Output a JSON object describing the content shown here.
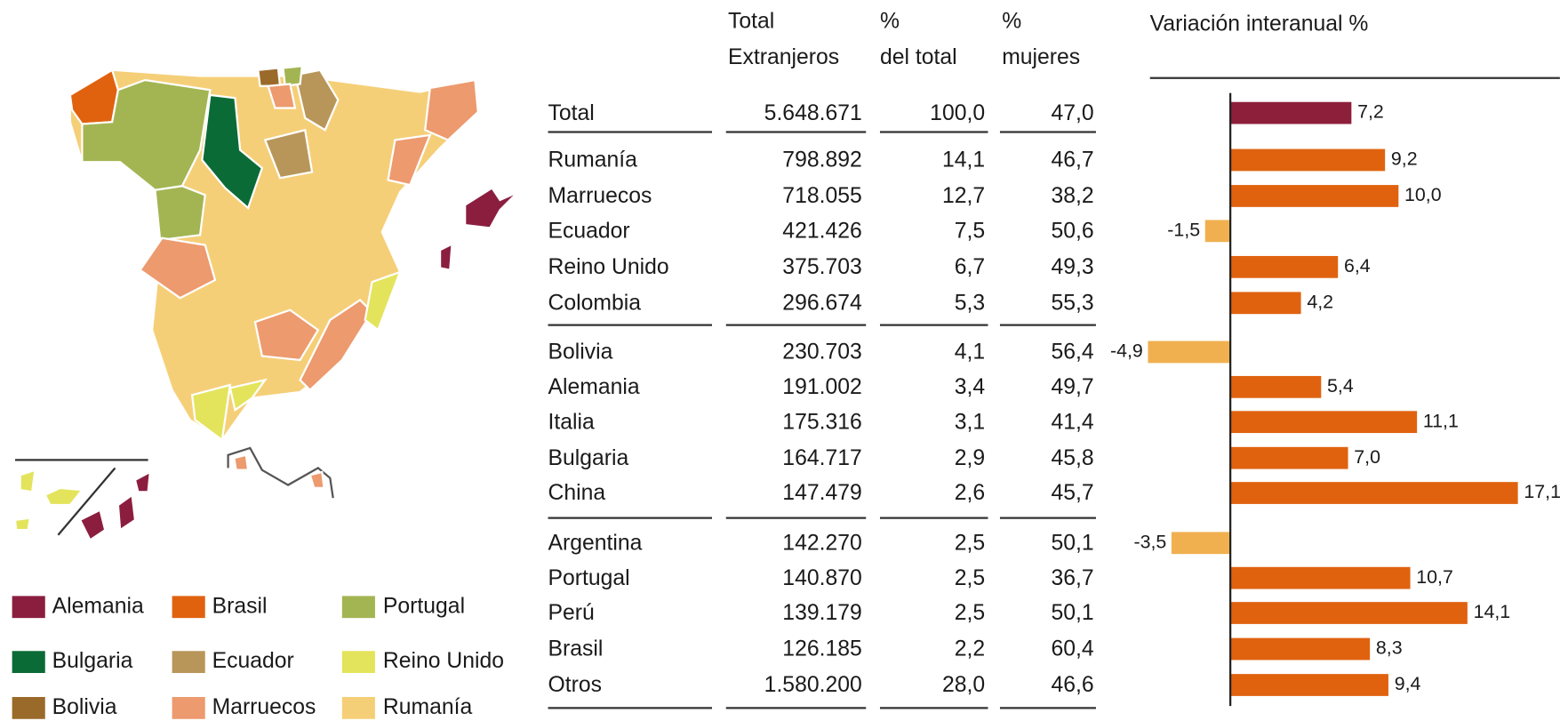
{
  "legend": [
    {
      "name": "Alemania",
      "color": "#8b1e3f"
    },
    {
      "name": "Brasil",
      "color": "#e0620f"
    },
    {
      "name": "Portugal",
      "color": "#a3b552"
    },
    {
      "name": "Bulgaria",
      "color": "#0b6b36"
    },
    {
      "name": "Ecuador",
      "color": "#b8965a"
    },
    {
      "name": "Reino Unido",
      "color": "#e3e45c"
    },
    {
      "name": "Bolivia",
      "color": "#9a6a2a"
    },
    {
      "name": "Marruecos",
      "color": "#ec9a6e"
    },
    {
      "name": "Rumanía",
      "color": "#f5cf78"
    }
  ],
  "table": {
    "headers": [
      [
        "Total",
        "Extranjeros"
      ],
      [
        "%",
        "del total"
      ],
      [
        "%",
        "mujeres"
      ]
    ],
    "rows": [
      [
        "Total",
        "5.648.671",
        "100,0",
        "47,0"
      ],
      [
        "Rumanía",
        "798.892",
        "14,1",
        "46,7"
      ],
      [
        "Marruecos",
        "718.055",
        "12,7",
        "38,2"
      ],
      [
        "Ecuador",
        "421.426",
        "7,5",
        "50,6"
      ],
      [
        "Reino Unido",
        "375.703",
        "6,7",
        "49,3"
      ],
      [
        "Colombia",
        "296.674",
        "5,3",
        "55,3"
      ],
      [
        "Bolivia",
        "230.703",
        "4,1",
        "56,4"
      ],
      [
        "Alemania",
        "191.002",
        "3,4",
        "49,7"
      ],
      [
        "Italia",
        "175.316",
        "3,1",
        "41,4"
      ],
      [
        "Bulgaria",
        "164.717",
        "2,9",
        "45,8"
      ],
      [
        "China",
        "147.479",
        "2,6",
        "45,7"
      ],
      [
        "Argentina",
        "142.270",
        "2,5",
        "50,1"
      ],
      [
        "Portugal",
        "140.870",
        "2,5",
        "36,7"
      ],
      [
        "Perú",
        "139.179",
        "2,5",
        "50,1"
      ],
      [
        "Brasil",
        "126.185",
        "2,2",
        "60,4"
      ],
      [
        "Otros",
        "1.580.200",
        "28,0",
        "46,6"
      ]
    ]
  },
  "chart_data": {
    "type": "bar",
    "title": "Variación interanual %",
    "values": [
      7.2,
      9.2,
      10.0,
      -1.5,
      6.4,
      4.2,
      -4.9,
      5.4,
      11.1,
      7.0,
      17.1,
      -3.5,
      10.7,
      14.1,
      8.3,
      9.4
    ],
    "value_labels": [
      "7,2",
      "9,2",
      "10,0",
      "-1,5",
      "6,4",
      "4,2",
      "-4,9",
      "5,4",
      "11,1",
      "7,0",
      "17,1",
      "-3,5",
      "10,7",
      "14,1",
      "8,3",
      "9,4"
    ],
    "colors": [
      "#8e1f3b",
      "#e0620f",
      "#e0620f",
      "#f0b050",
      "#e0620f",
      "#e0620f",
      "#f0b050",
      "#e0620f",
      "#e0620f",
      "#e0620f",
      "#e0620f",
      "#f0b050",
      "#e0620f",
      "#e0620f",
      "#e0620f",
      "#e0620f"
    ],
    "xlim": [
      -4.9,
      17.1
    ]
  }
}
